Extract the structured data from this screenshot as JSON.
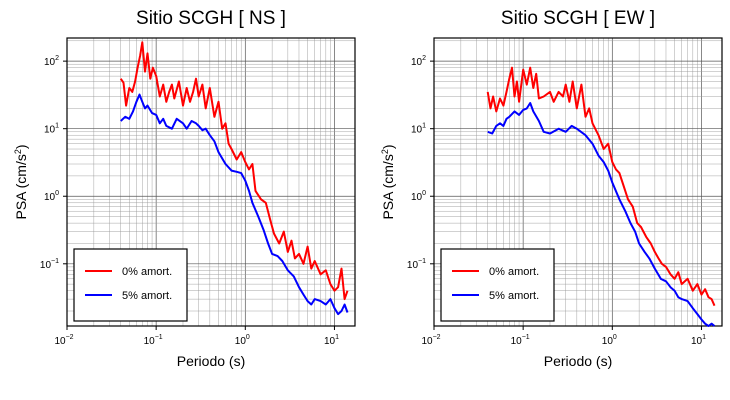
{
  "chart_data": [
    {
      "type": "line",
      "title": "Sitio SCGH [ NS ]",
      "xlabel": "Periodo (s)",
      "ylabel_main": "PSA (cm/s",
      "ylabel_sup": "2",
      "ylabel_tail": ")",
      "x_scale": "log",
      "y_scale": "log",
      "xlim": [
        0.01,
        17
      ],
      "ylim": [
        0.012,
        220
      ],
      "x_ticks": [
        {
          "value": 0.01,
          "base": "10",
          "exp": "−2"
        },
        {
          "value": 0.1,
          "base": "10",
          "exp": "−1"
        },
        {
          "value": 1,
          "base": "10",
          "exp": "0"
        },
        {
          "value": 10,
          "base": "10",
          "exp": "1"
        }
      ],
      "y_ticks": [
        {
          "value": 0.1,
          "base": "10",
          "exp": "−1"
        },
        {
          "value": 1,
          "base": "10",
          "exp": "0"
        },
        {
          "value": 10,
          "base": "10",
          "exp": "1"
        },
        {
          "value": 100,
          "base": "10",
          "exp": "2"
        }
      ],
      "grid": true,
      "legend_position": "bottom-left",
      "series": [
        {
          "name": "0% amort.",
          "color": "#ff0000",
          "x": [
            0.04,
            0.043,
            0.046,
            0.05,
            0.054,
            0.058,
            0.062,
            0.066,
            0.07,
            0.075,
            0.08,
            0.086,
            0.092,
            0.1,
            0.11,
            0.12,
            0.13,
            0.14,
            0.15,
            0.16,
            0.18,
            0.2,
            0.22,
            0.24,
            0.26,
            0.28,
            0.3,
            0.33,
            0.36,
            0.4,
            0.45,
            0.5,
            0.55,
            0.6,
            0.65,
            0.7,
            0.8,
            0.9,
            1.0,
            1.1,
            1.2,
            1.3,
            1.5,
            1.7,
            1.9,
            2.1,
            2.4,
            2.7,
            3.0,
            3.3,
            3.6,
            4.0,
            4.5,
            5.0,
            5.5,
            6.0,
            7.0,
            8.0,
            9.0,
            10.0,
            11.0,
            12.0,
            13.0,
            14.0
          ],
          "y": [
            55,
            48,
            22,
            40,
            35,
            50,
            80,
            120,
            190,
            70,
            130,
            55,
            80,
            60,
            30,
            45,
            25,
            35,
            45,
            28,
            50,
            22,
            40,
            25,
            35,
            55,
            30,
            45,
            20,
            40,
            15,
            25,
            10,
            12,
            6,
            5,
            3.5,
            4.5,
            3.2,
            2.5,
            3,
            1.2,
            0.9,
            0.8,
            0.45,
            0.28,
            0.2,
            0.3,
            0.15,
            0.22,
            0.12,
            0.14,
            0.1,
            0.18,
            0.085,
            0.11,
            0.07,
            0.08,
            0.05,
            0.04,
            0.045,
            0.085,
            0.03,
            0.04
          ]
        },
        {
          "name": "5% amort.",
          "color": "#0000ff",
          "x": [
            0.04,
            0.045,
            0.05,
            0.055,
            0.06,
            0.065,
            0.07,
            0.075,
            0.08,
            0.09,
            0.1,
            0.11,
            0.12,
            0.13,
            0.15,
            0.17,
            0.2,
            0.22,
            0.25,
            0.28,
            0.3,
            0.33,
            0.36,
            0.4,
            0.45,
            0.5,
            0.6,
            0.7,
            0.8,
            0.9,
            1.0,
            1.1,
            1.2,
            1.4,
            1.6,
            1.8,
            2.0,
            2.3,
            2.6,
            3.0,
            3.5,
            4.0,
            4.5,
            5.0,
            5.5,
            6.0,
            7.0,
            8.0,
            9.0,
            10.0,
            11.0,
            12.0,
            13.0,
            14.0
          ],
          "y": [
            13,
            15,
            14,
            18,
            25,
            32,
            25,
            20,
            22,
            17,
            16,
            12,
            14,
            11,
            10,
            14,
            12,
            10,
            13,
            12,
            11,
            9.5,
            10,
            8,
            6.5,
            4.5,
            3,
            2.4,
            2.3,
            2.2,
            1.7,
            1.2,
            0.8,
            0.5,
            0.32,
            0.2,
            0.14,
            0.13,
            0.11,
            0.08,
            0.065,
            0.045,
            0.035,
            0.028,
            0.025,
            0.03,
            0.028,
            0.025,
            0.03,
            0.022,
            0.018,
            0.02,
            0.025,
            0.019
          ]
        }
      ]
    },
    {
      "type": "line",
      "title": "Sitio SCGH [ EW ]",
      "xlabel": "Periodo (s)",
      "ylabel_main": "PSA (cm/s",
      "ylabel_sup": "2",
      "ylabel_tail": ")",
      "x_scale": "log",
      "y_scale": "log",
      "xlim": [
        0.01,
        17
      ],
      "ylim": [
        0.012,
        220
      ],
      "x_ticks": [
        {
          "value": 0.01,
          "base": "10",
          "exp": "−2"
        },
        {
          "value": 0.1,
          "base": "10",
          "exp": "−1"
        },
        {
          "value": 1,
          "base": "10",
          "exp": "0"
        },
        {
          "value": 10,
          "base": "10",
          "exp": "1"
        }
      ],
      "y_ticks": [
        {
          "value": 0.1,
          "base": "10",
          "exp": "−1"
        },
        {
          "value": 1,
          "base": "10",
          "exp": "0"
        },
        {
          "value": 10,
          "base": "10",
          "exp": "1"
        },
        {
          "value": 100,
          "base": "10",
          "exp": "2"
        }
      ],
      "grid": true,
      "legend_position": "bottom-left",
      "series": [
        {
          "name": "0% amort.",
          "color": "#ff0000",
          "x": [
            0.04,
            0.043,
            0.046,
            0.05,
            0.055,
            0.06,
            0.065,
            0.07,
            0.075,
            0.08,
            0.085,
            0.09,
            0.1,
            0.11,
            0.12,
            0.13,
            0.14,
            0.15,
            0.17,
            0.2,
            0.22,
            0.25,
            0.28,
            0.3,
            0.33,
            0.36,
            0.4,
            0.45,
            0.5,
            0.55,
            0.6,
            0.7,
            0.8,
            0.9,
            1.0,
            1.1,
            1.2,
            1.3,
            1.5,
            1.7,
            1.9,
            2.1,
            2.4,
            2.7,
            3.0,
            3.3,
            3.6,
            4.0,
            4.5,
            5.0,
            5.5,
            6.0,
            7.0,
            8.0,
            9.0,
            10.0,
            11.0,
            12.0,
            13.0,
            14.0
          ],
          "y": [
            35,
            20,
            30,
            18,
            28,
            22,
            35,
            55,
            80,
            30,
            50,
            25,
            75,
            45,
            80,
            40,
            65,
            28,
            30,
            35,
            25,
            35,
            30,
            45,
            25,
            50,
            20,
            45,
            15,
            20,
            12,
            8,
            5,
            6,
            3.2,
            2.5,
            2.2,
            1.6,
            0.9,
            0.7,
            0.4,
            0.35,
            0.25,
            0.2,
            0.15,
            0.12,
            0.1,
            0.09,
            0.07,
            0.06,
            0.075,
            0.05,
            0.06,
            0.04,
            0.05,
            0.035,
            0.042,
            0.032,
            0.03,
            0.024
          ]
        },
        {
          "name": "5% amort.",
          "color": "#0000ff",
          "x": [
            0.04,
            0.045,
            0.05,
            0.055,
            0.06,
            0.065,
            0.07,
            0.08,
            0.09,
            0.1,
            0.11,
            0.12,
            0.13,
            0.15,
            0.17,
            0.2,
            0.25,
            0.3,
            0.35,
            0.4,
            0.5,
            0.6,
            0.7,
            0.8,
            0.9,
            1.0,
            1.2,
            1.4,
            1.6,
            1.8,
            2.0,
            2.3,
            2.6,
            3.0,
            3.5,
            4.0,
            4.5,
            5.0,
            5.5,
            6.0,
            7.0,
            8.0,
            9.0,
            10.0,
            11.0,
            12.0,
            13.0,
            14.0
          ],
          "y": [
            9,
            8.5,
            11,
            12,
            11,
            14,
            15,
            18,
            16,
            19,
            20,
            24,
            18,
            13,
            9,
            8.5,
            10,
            9,
            11,
            10,
            8,
            6,
            4,
            3.2,
            2.4,
            1.6,
            0.9,
            0.6,
            0.4,
            0.3,
            0.2,
            0.15,
            0.12,
            0.085,
            0.06,
            0.055,
            0.045,
            0.04,
            0.032,
            0.03,
            0.028,
            0.022,
            0.018,
            0.015,
            0.013,
            0.012,
            0.013,
            0.012
          ]
        }
      ]
    }
  ]
}
